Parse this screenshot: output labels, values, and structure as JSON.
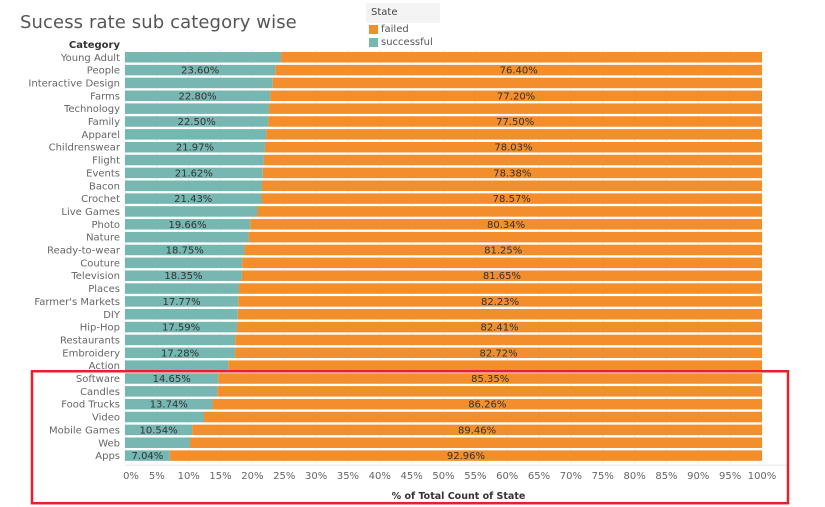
{
  "title": "Sucess rate sub category wise",
  "legend": {
    "title": "State",
    "items": [
      {
        "label": "failed",
        "color": "#f28e2b"
      },
      {
        "label": "successful",
        "color": "#76b7b2"
      }
    ]
  },
  "highlight_box_color": "#e8202a",
  "chart_data": {
    "type": "bar",
    "orientation": "horizontal",
    "stacked": "100%",
    "title": "Sucess rate sub category wise",
    "ylabel": "Category",
    "xlabel": "% of Total Count of State",
    "xlim": [
      0,
      100
    ],
    "x_ticks": [
      "0%",
      "5%",
      "10%",
      "15%",
      "20%",
      "25%",
      "30%",
      "35%",
      "40%",
      "45%",
      "50%",
      "55%",
      "60%",
      "65%",
      "70%",
      "75%",
      "80%",
      "85%",
      "90%",
      "95%",
      "100%"
    ],
    "grid": true,
    "legend_position": "top",
    "categories": [
      "Young Adult",
      "People",
      "Interactive Design",
      "Farms",
      "Technology",
      "Family",
      "Apparel",
      "Childrenswear",
      "Flight",
      "Events",
      "Bacon",
      "Crochet",
      "Live Games",
      "Photo",
      "Nature",
      "Ready-to-wear",
      "Couture",
      "Television",
      "Places",
      "Farmer's Markets",
      "DIY",
      "Hip-Hop",
      "Restaurants",
      "Embroidery",
      "Action",
      "Software",
      "Candles",
      "Food Trucks",
      "Video",
      "Mobile Games",
      "Web",
      "Apps"
    ],
    "series": [
      {
        "name": "successful",
        "color": "#76b7b2",
        "values": [
          24.5,
          23.6,
          23.2,
          22.8,
          22.6,
          22.5,
          22.2,
          21.97,
          21.8,
          21.62,
          21.5,
          21.43,
          20.8,
          19.66,
          19.4,
          18.75,
          18.4,
          18.35,
          17.9,
          17.77,
          17.7,
          17.59,
          17.3,
          17.28,
          16.2,
          14.65,
          14.5,
          13.74,
          12.4,
          10.54,
          10.2,
          7.04
        ]
      },
      {
        "name": "failed",
        "color": "#f28e2b",
        "values": [
          75.5,
          76.4,
          76.8,
          77.2,
          77.4,
          77.5,
          77.8,
          78.03,
          78.2,
          78.38,
          78.5,
          78.57,
          79.2,
          80.34,
          80.6,
          81.25,
          81.6,
          81.65,
          82.1,
          82.23,
          82.3,
          82.41,
          82.7,
          82.72,
          83.8,
          85.35,
          85.5,
          86.26,
          87.6,
          89.46,
          89.8,
          92.96
        ]
      }
    ],
    "data_labels": {
      "successful": [
        null,
        "23.60%",
        null,
        "22.80%",
        null,
        "22.50%",
        null,
        "21.97%",
        null,
        "21.62%",
        null,
        "21.43%",
        null,
        "19.66%",
        null,
        "18.75%",
        null,
        "18.35%",
        null,
        "17.77%",
        null,
        "17.59%",
        null,
        "17.28%",
        null,
        "14.65%",
        null,
        "13.74%",
        null,
        "10.54%",
        null,
        "7.04%"
      ],
      "failed": [
        null,
        "76.40%",
        null,
        "77.20%",
        null,
        "77.50%",
        null,
        "78.03%",
        null,
        "78.38%",
        null,
        "78.57%",
        null,
        "80.34%",
        null,
        "81.25%",
        null,
        "81.65%",
        null,
        "82.23%",
        null,
        "82.41%",
        null,
        "82.72%",
        null,
        "85.35%",
        null,
        "86.26%",
        null,
        "89.46%",
        null,
        "92.96%"
      ]
    },
    "highlighted_categories": [
      "Software",
      "Candles",
      "Food Trucks",
      "Video",
      "Mobile Games",
      "Web",
      "Apps"
    ]
  }
}
